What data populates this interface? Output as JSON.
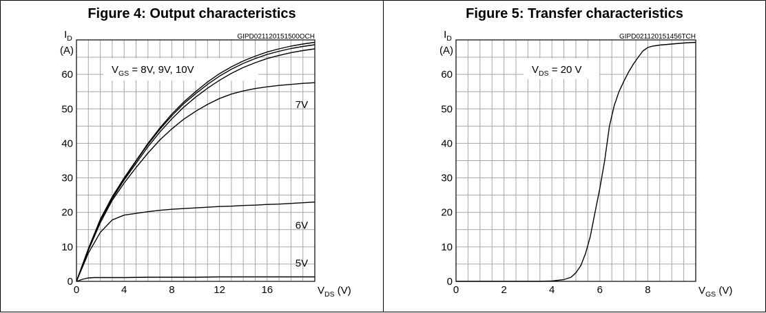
{
  "chart_data": [
    {
      "type": "line",
      "title": "Figure 4: Output characteristics",
      "code": "GIPD021120151500OCH",
      "y_label": {
        "main": "I",
        "sub": "D"
      },
      "y_unit": "(A)",
      "x_label": {
        "main": "V",
        "sub": "DS",
        "unit": " (V)"
      },
      "xlim": [
        0,
        20
      ],
      "ylim": [
        0,
        70
      ],
      "x_ticks": [
        0,
        4,
        8,
        12,
        16
      ],
      "y_ticks": [
        0,
        10,
        20,
        30,
        40,
        50,
        60
      ],
      "annotation_box": {
        "main": "V",
        "sub": "GS",
        "rest": " = 8V, 9V, 10V"
      },
      "series": [
        {
          "name": "10V",
          "x": [
            0,
            1,
            2,
            3,
            4,
            5,
            6,
            7,
            8,
            9,
            10,
            11,
            12,
            13,
            14,
            15,
            16,
            17,
            18,
            19,
            20
          ],
          "y": [
            0,
            9.5,
            18,
            24.5,
            30,
            35,
            40,
            44.5,
            48.5,
            52,
            55,
            57.8,
            60.2,
            62.2,
            63.9,
            65.3,
            66.5,
            67.4,
            68.2,
            68.8,
            69.3
          ]
        },
        {
          "name": "9V",
          "x": [
            0,
            1,
            2,
            3,
            4,
            5,
            6,
            7,
            8,
            9,
            10,
            11,
            12,
            13,
            14,
            15,
            16,
            17,
            18,
            19,
            20
          ],
          "y": [
            0,
            9.4,
            17.8,
            24.3,
            29.8,
            34.8,
            39.7,
            44.1,
            48,
            51.5,
            54.4,
            57.1,
            59.5,
            61.5,
            63.2,
            64.6,
            65.8,
            66.7,
            67.5,
            68.1,
            68.6
          ]
        },
        {
          "name": "8V",
          "x": [
            0,
            1,
            2,
            3,
            4,
            5,
            6,
            7,
            8,
            9,
            10,
            11,
            12,
            13,
            14,
            15,
            16,
            17,
            18,
            19,
            20
          ],
          "y": [
            0,
            9.3,
            17.6,
            24,
            29.4,
            34.2,
            39,
            43.3,
            47.1,
            50.5,
            53.4,
            56,
            58.3,
            60.3,
            62,
            63.4,
            64.6,
            65.5,
            66.3,
            66.9,
            67.4
          ]
        },
        {
          "name": "7V",
          "x": [
            0,
            1,
            2,
            3,
            4,
            5,
            6,
            7,
            8,
            9,
            10,
            11,
            12,
            13,
            14,
            15,
            16,
            17,
            18,
            19,
            20
          ],
          "y": [
            0,
            9,
            17,
            23.5,
            28.5,
            33,
            37.2,
            41,
            44.2,
            47,
            49.3,
            51.3,
            53,
            54.3,
            55.2,
            55.9,
            56.4,
            56.8,
            57.1,
            57.4,
            57.6
          ]
        },
        {
          "name": "6V",
          "x": [
            0,
            1,
            2,
            3,
            4,
            5,
            6,
            7,
            8,
            9,
            10,
            11,
            12,
            13,
            14,
            15,
            16,
            17,
            18,
            19,
            20
          ],
          "y": [
            0,
            8.2,
            14.2,
            17.8,
            19.2,
            19.7,
            20.2,
            20.6,
            20.9,
            21.1,
            21.3,
            21.5,
            21.7,
            21.8,
            22,
            22.1,
            22.3,
            22.4,
            22.6,
            22.8,
            23
          ]
        },
        {
          "name": "5V",
          "x": [
            0,
            0.5,
            1,
            1.5,
            2,
            4,
            6,
            8,
            10,
            12,
            14,
            16,
            18,
            20
          ],
          "y": [
            0,
            0.6,
            1,
            1.1,
            1.1,
            1.1,
            1.2,
            1.2,
            1.2,
            1.3,
            1.3,
            1.3,
            1.3,
            1.3
          ]
        }
      ],
      "curve_labels": [
        {
          "text": "7V",
          "x": 18.9,
          "y": 50.3
        },
        {
          "text": "6V",
          "x": 18.9,
          "y": 15.3
        },
        {
          "text": "5V",
          "x": 18.9,
          "y": 4.3
        }
      ]
    },
    {
      "type": "line",
      "title": "Figure 5: Transfer characteristics",
      "code": "GIPD021120151456TCH",
      "y_label": {
        "main": "I",
        "sub": "D"
      },
      "y_unit": "(A)",
      "x_label": {
        "main": "V",
        "sub": "GS",
        "unit": " (V)"
      },
      "xlim": [
        0,
        10
      ],
      "ylim": [
        0,
        70
      ],
      "x_ticks": [
        0,
        2,
        4,
        6,
        8
      ],
      "y_ticks": [
        0,
        10,
        20,
        30,
        40,
        50,
        60
      ],
      "annotation_box": {
        "main": "V",
        "sub": "DS",
        "rest": " = 20 V"
      },
      "series": [
        {
          "name": "",
          "x": [
            0,
            3.5,
            4,
            4.5,
            4.8,
            5.0,
            5.2,
            5.4,
            5.6,
            5.8,
            6.0,
            6.2,
            6.4,
            6.6,
            6.8,
            7.0,
            7.2,
            7.4,
            7.6,
            7.8,
            8.0,
            8.2,
            8.5,
            9,
            9.5,
            10
          ],
          "y": [
            0,
            0,
            0.1,
            0.5,
            1.2,
            2.5,
            4.5,
            8,
            13,
            20,
            27,
            35,
            45,
            51,
            55,
            58,
            60.7,
            63,
            65,
            66.8,
            67.8,
            68.2,
            68.5,
            68.8,
            69.1,
            69.3
          ]
        }
      ]
    }
  ]
}
